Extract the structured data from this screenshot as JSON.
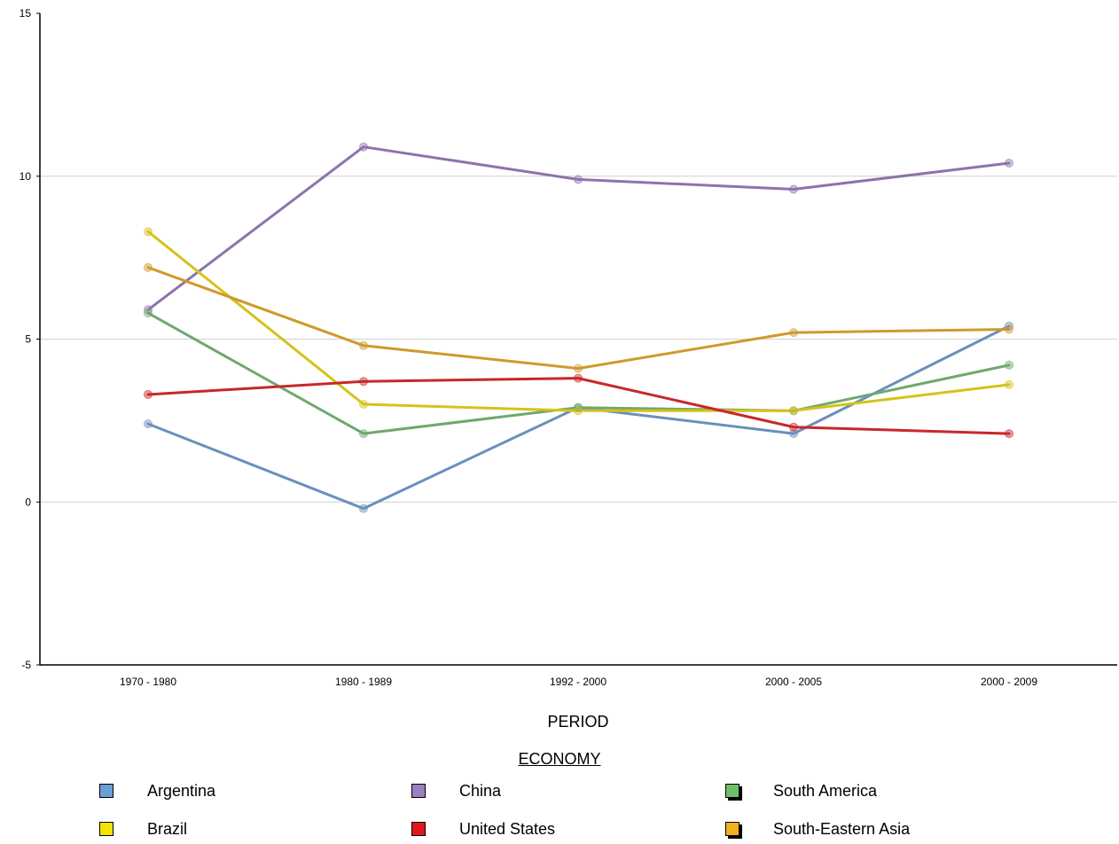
{
  "chart_data": {
    "type": "line",
    "categories": [
      "1970 - 1980",
      "1980 - 1989",
      "1992 - 2000",
      "2000 - 2005",
      "2000 - 2009"
    ],
    "ylim": [
      -5,
      15
    ],
    "yticks": [
      "15",
      "10",
      "5",
      "0",
      "-5"
    ],
    "xlabel": "PERIOD",
    "legend_title": "ECONOMY",
    "legend_position": "bottom",
    "grid": true,
    "series": [
      {
        "name": "Argentina",
        "color": "#6a8fbd",
        "values": [
          2.4,
          -0.2,
          2.9,
          2.1,
          5.4
        ]
      },
      {
        "name": "China",
        "color": "#8d73ad",
        "values": [
          5.9,
          10.9,
          9.9,
          9.6,
          10.4
        ]
      },
      {
        "name": "South America",
        "color": "#6fa86d",
        "values": [
          5.8,
          2.1,
          2.9,
          2.8,
          4.2
        ]
      },
      {
        "name": "Brazil",
        "color": "#d6c21a",
        "values": [
          8.3,
          3.0,
          2.8,
          2.8,
          3.6
        ]
      },
      {
        "name": "United States",
        "color": "#c8282b",
        "values": [
          3.3,
          3.7,
          3.8,
          2.3,
          2.1
        ]
      },
      {
        "name": "South-Eastern Asia",
        "color": "#cf9a2a",
        "values": [
          7.2,
          4.8,
          4.1,
          5.2,
          5.3
        ]
      }
    ]
  },
  "legend_items": [
    {
      "label": "Argentina",
      "color": "#6a9fd4",
      "shadow": false
    },
    {
      "label": "China",
      "color": "#9a7fc1",
      "shadow": false
    },
    {
      "label": "South America",
      "color": "#6fbf6a",
      "shadow": true
    },
    {
      "label": "Brazil",
      "color": "#f2e400",
      "shadow": false
    },
    {
      "label": "United States",
      "color": "#e0181e",
      "shadow": false
    },
    {
      "label": "South-Eastern Asia",
      "color": "#f0b020",
      "shadow": true
    }
  ]
}
